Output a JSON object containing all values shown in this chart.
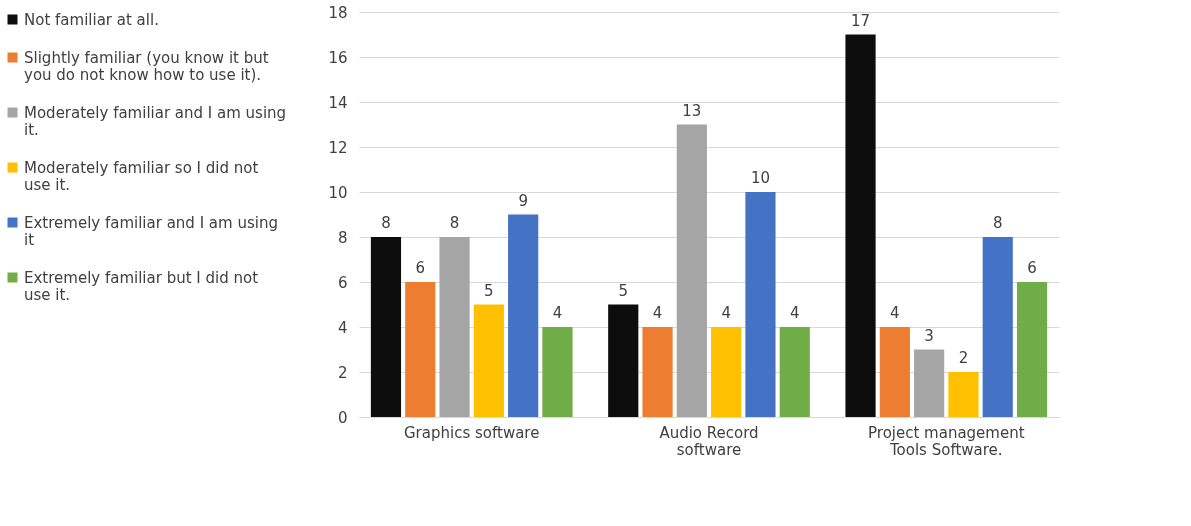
{
  "chart_data": {
    "type": "bar",
    "categories": [
      "Graphics software",
      "Audio Record software",
      "Project management Tools Software."
    ],
    "series": [
      {
        "name": "Not familiar at all.",
        "color": "#0d0d0d",
        "values": [
          8,
          5,
          17
        ]
      },
      {
        "name": "Slightly familiar (you know it but you do not know how to use it).",
        "color": "#ed7d31",
        "values": [
          6,
          4,
          4
        ]
      },
      {
        "name": "Moderately familiar and I am using it.",
        "color": "#a5a5a5",
        "values": [
          8,
          13,
          3
        ]
      },
      {
        "name": "Moderately familiar so I did not use it.",
        "color": "#ffc000",
        "values": [
          5,
          4,
          2
        ]
      },
      {
        "name": "Extremely familiar and I am using it",
        "color": "#4472c4",
        "values": [
          9,
          10,
          8
        ]
      },
      {
        "name": "Extremely familiar but I did not use it.",
        "color": "#70ad47",
        "values": [
          4,
          4,
          6
        ]
      }
    ],
    "ylim": [
      0,
      18
    ],
    "yticks": [
      0,
      2,
      4,
      6,
      8,
      10,
      12,
      14,
      16,
      18
    ],
    "grid": "y",
    "legend": "left",
    "data_labels": true
  }
}
